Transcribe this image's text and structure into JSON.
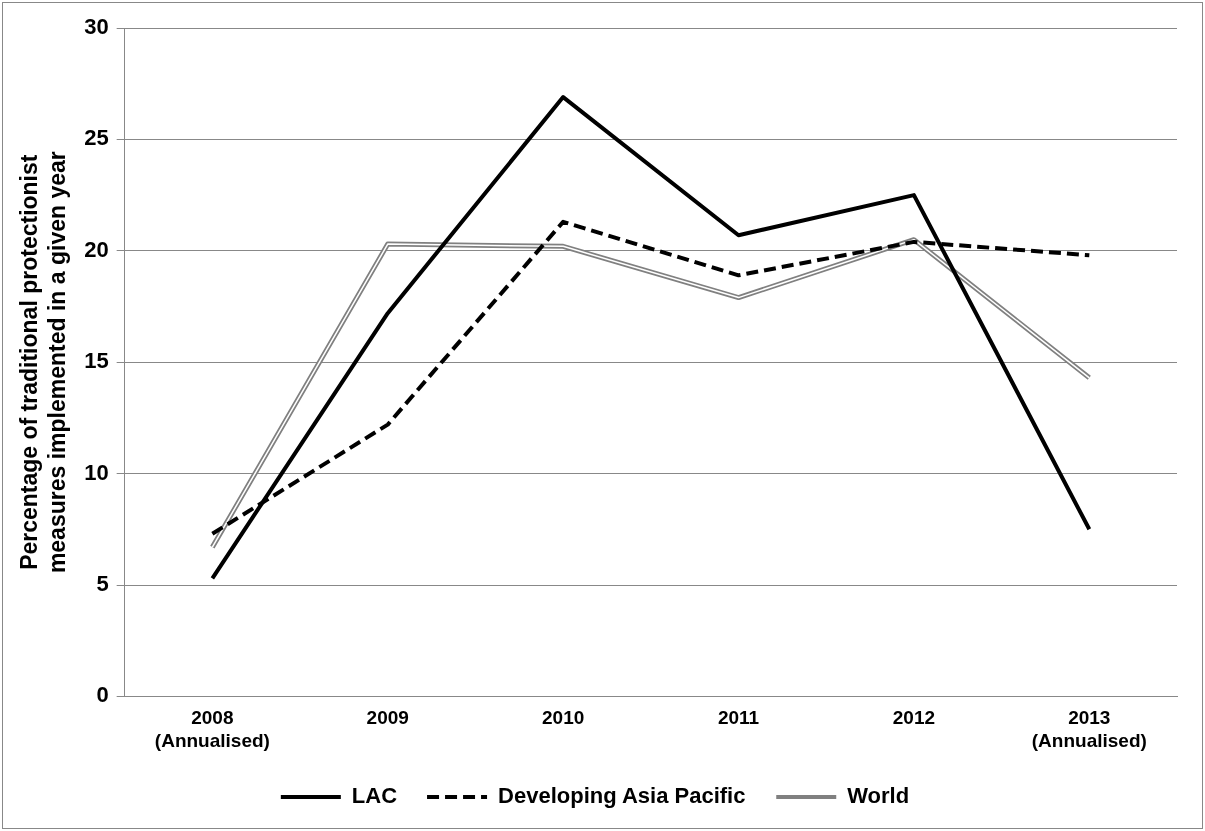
{
  "chart_data": {
    "type": "line",
    "ylabel": "Percentage of traditional protectionist\nmeasures implemented in a given year",
    "categories": [
      "2008\n(Annualised)",
      "2009",
      "2010",
      "2011",
      "2012",
      "2013\n(Annualised)"
    ],
    "series": [
      {
        "name": "LAC",
        "color": "#000000",
        "line_style": "solid",
        "values": [
          5.3,
          17.2,
          26.9,
          20.7,
          22.5,
          7.5
        ]
      },
      {
        "name": "Developing Asia Pacific",
        "color": "#000000",
        "line_style": "dashed",
        "values": [
          7.3,
          12.2,
          21.3,
          18.9,
          20.4,
          19.8
        ]
      },
      {
        "name": "World",
        "color": "#808080",
        "line_style": "solid",
        "values": [
          6.7,
          20.3,
          20.2,
          17.9,
          20.5,
          14.3
        ]
      }
    ],
    "ylim": [
      0,
      30
    ],
    "yticks": [
      0,
      5,
      10,
      15,
      20,
      25,
      30
    ],
    "grid": "y",
    "legend": "bottom",
    "marker": "none"
  }
}
